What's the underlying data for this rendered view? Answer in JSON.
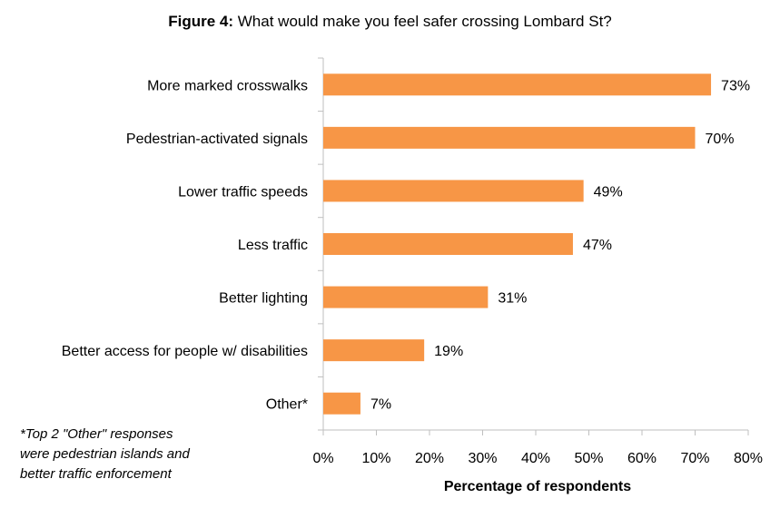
{
  "title": {
    "lead": "Figure 4:",
    "text": "What would make you feel safer crossing Lombard St?"
  },
  "footnote": [
    "*Top 2 \"Other\" responses",
    "were pedestrian islands and",
    "better traffic enforcement"
  ],
  "colors": {
    "bar": "#F79646",
    "axis": "#BFBFBF"
  },
  "chart_data": {
    "type": "bar",
    "orientation": "horizontal",
    "categories": [
      "More marked crosswalks",
      "Pedestrian-activated signals",
      "Lower traffic speeds",
      "Less traffic",
      "Better lighting",
      "Better access for people w/ disabilities",
      "Other*"
    ],
    "values": [
      73,
      70,
      49,
      47,
      31,
      19,
      7
    ],
    "data_labels": [
      "73%",
      "70%",
      "49%",
      "47%",
      "31%",
      "19%",
      "7%"
    ],
    "xlabel": "Percentage of respondents",
    "xlim": [
      0,
      80
    ],
    "xticks": [
      0,
      10,
      20,
      30,
      40,
      50,
      60,
      70,
      80
    ],
    "xtick_labels": [
      "0%",
      "10%",
      "20%",
      "30%",
      "40%",
      "50%",
      "60%",
      "70%",
      "80%"
    ],
    "grid": false
  }
}
